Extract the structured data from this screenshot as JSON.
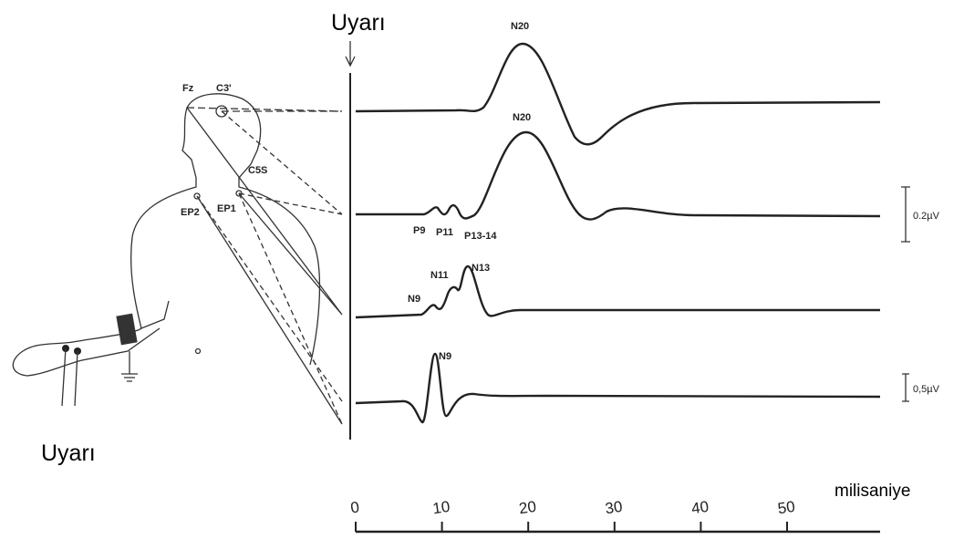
{
  "stimulus": {
    "top": "Uyarı",
    "bottom": "Uyarı"
  },
  "electrodes": [
    "Fz",
    "C3'",
    "C5S",
    "EP2",
    "EP1"
  ],
  "traces": [
    {
      "peaks": [
        "N20"
      ]
    },
    {
      "peaks": [
        "N20",
        "P9",
        "P11",
        "P13-14"
      ]
    },
    {
      "peaks": [
        "N9",
        "N11",
        "N13"
      ]
    },
    {
      "peaks": [
        "N9"
      ]
    }
  ],
  "scales": [
    "0.2µV",
    "0,5µV"
  ],
  "axis": {
    "label": "milisaniye",
    "ticks": [
      0,
      10,
      20,
      30,
      40,
      50
    ]
  }
}
